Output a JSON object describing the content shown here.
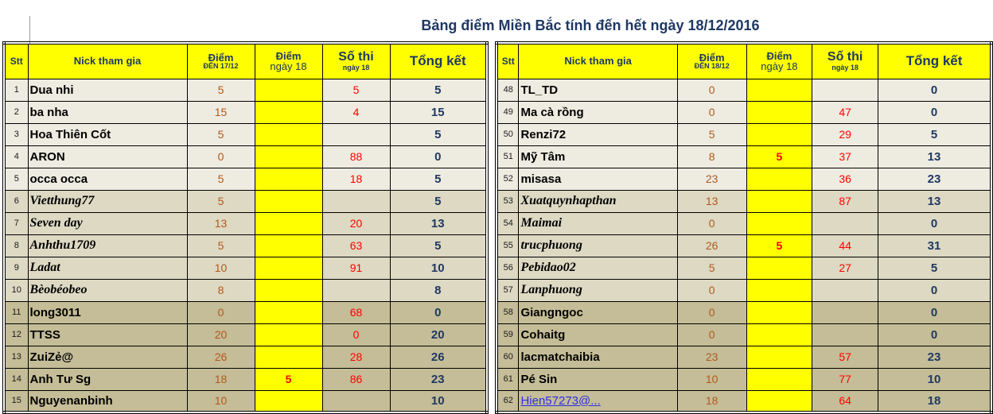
{
  "title": "Bảng điểm Miền Bắc tính đến hết ngày 18/12/2016",
  "colors": {
    "accent_navy": "#1F3864",
    "score_red": "#FF0000",
    "points_brown": "#B0591E",
    "header_yellow": "#FFFF00",
    "stripe_light": "#EEECE1",
    "stripe_mid": "#DDD9C3",
    "stripe_dark": "#C4BD97",
    "link_blue": "#2D2DE1"
  },
  "tables": [
    {
      "headers": {
        "stt": "Stt",
        "nick": "Nick tham gia",
        "diem_main": "Điểm",
        "diem_sub": "ĐẾN 17/12",
        "d18_main": "Điểm",
        "d18_sub": "ngày 18",
        "sothi_main": "Số thi",
        "sothi_sub": "ngày 18",
        "tong": "Tổng kết"
      },
      "rows": [
        {
          "stt": "1",
          "nick": "Dua nhi",
          "diem": "5",
          "d18": "",
          "sothi": "5",
          "tong": "5"
        },
        {
          "stt": "2",
          "nick": "ba nha",
          "diem": "15",
          "d18": "",
          "sothi": "4",
          "tong": "15"
        },
        {
          "stt": "3",
          "nick": "Hoa Thiên Cốt",
          "diem": "5",
          "d18": "",
          "sothi": "",
          "tong": "5"
        },
        {
          "stt": "4",
          "nick": "ARON",
          "diem": "0",
          "d18": "",
          "sothi": "88",
          "tong": "0"
        },
        {
          "stt": "5",
          "nick": "occa occa",
          "diem": "5",
          "d18": "",
          "sothi": "18",
          "tong": "5"
        },
        {
          "stt": "6",
          "nick": "Vietthung77",
          "it": true,
          "diem": "5",
          "d18": "",
          "sothi": "",
          "tong": "5"
        },
        {
          "stt": "7",
          "nick": "Seven day",
          "it": true,
          "diem": "13",
          "d18": "",
          "sothi": "20",
          "tong": "13"
        },
        {
          "stt": "8",
          "nick": "Anhthu1709",
          "it": true,
          "diem": "5",
          "d18": "",
          "sothi": "63",
          "tong": "5"
        },
        {
          "stt": "9",
          "nick": "Ladat",
          "it": true,
          "diem": "10",
          "d18": "",
          "sothi": "91",
          "tong": "10"
        },
        {
          "stt": "10",
          "nick": "Bèobéobeo",
          "it": true,
          "diem": "8",
          "d18": "",
          "sothi": "",
          "tong": "8"
        },
        {
          "stt": "11",
          "nick": "long3011",
          "diem": "0",
          "d18": "",
          "sothi": "68",
          "tong": "0"
        },
        {
          "stt": "12",
          "nick": "TTSS",
          "diem": "20",
          "d18": "",
          "sothi": "0",
          "tong": "20"
        },
        {
          "stt": "13",
          "nick": "ZuiZẻ@",
          "diem": "26",
          "d18": "",
          "sothi": "28",
          "tong": "26"
        },
        {
          "stt": "14",
          "nick": "Anh Tư Sg",
          "diem": "18",
          "d18": "5",
          "sothi": "86",
          "tong": "23"
        },
        {
          "stt": "15",
          "nick": "Nguyenanbinh",
          "diem": "10",
          "d18": "",
          "sothi": "",
          "tong": "10"
        }
      ]
    },
    {
      "headers": {
        "stt": "Stt",
        "nick": "Nick tham gia",
        "diem_main": "Điểm",
        "diem_sub": "ĐẾN 18/12",
        "d18_main": "Điểm",
        "d18_sub": "ngày 18",
        "sothi_main": "Số thi",
        "sothi_sub": "ngày 18",
        "tong": "Tổng kết"
      },
      "rows": [
        {
          "stt": "48",
          "nick": "TL_TD",
          "diem": "0",
          "d18": "",
          "sothi": "",
          "tong": "0"
        },
        {
          "stt": "49",
          "nick": "Ma cà rồng",
          "diem": "0",
          "d18": "",
          "sothi": "47",
          "tong": "0"
        },
        {
          "stt": "50",
          "nick": "Renzi72",
          "diem": "5",
          "d18": "",
          "sothi": "29",
          "tong": "5"
        },
        {
          "stt": "51",
          "nick": "Mỹ Tâm",
          "diem": "8",
          "d18": "5",
          "sothi": "37",
          "tong": "13"
        },
        {
          "stt": "52",
          "nick": "misasa",
          "diem": "23",
          "d18": "",
          "sothi": "36",
          "tong": "23"
        },
        {
          "stt": "53",
          "nick": "Xuatquynhapthan",
          "it": true,
          "diem": "13",
          "d18": "",
          "sothi": "87",
          "tong": "13"
        },
        {
          "stt": "54",
          "nick": "Maimai",
          "it": true,
          "diem": "0",
          "d18": "",
          "sothi": "",
          "tong": "0"
        },
        {
          "stt": "55",
          "nick": "trucphuong",
          "it": true,
          "diem": "26",
          "d18": "5",
          "sothi": "44",
          "tong": "31"
        },
        {
          "stt": "56",
          "nick": "Pebidao02",
          "it": true,
          "diem": "5",
          "d18": "",
          "sothi": "27",
          "tong": "5"
        },
        {
          "stt": "57",
          "nick": "Lanphuong",
          "it": true,
          "diem": "0",
          "d18": "",
          "sothi": "",
          "tong": "0"
        },
        {
          "stt": "58",
          "nick": "Giangngoc",
          "diem": "0",
          "d18": "",
          "sothi": "",
          "tong": "0"
        },
        {
          "stt": "59",
          "nick": "Cohaitg",
          "diem": "0",
          "d18": "",
          "sothi": "",
          "tong": "0"
        },
        {
          "stt": "60",
          "nick": "lacmatchaibia",
          "diem": "23",
          "d18": "",
          "sothi": "57",
          "tong": "23"
        },
        {
          "stt": "61",
          "nick": "Pé Sin",
          "diem": "10",
          "d18": "",
          "sothi": "77",
          "tong": "10"
        },
        {
          "stt": "62",
          "nick": "Hien57273@...",
          "link": true,
          "diem": "18",
          "d18": "",
          "sothi": "64",
          "tong": "18"
        }
      ]
    }
  ]
}
